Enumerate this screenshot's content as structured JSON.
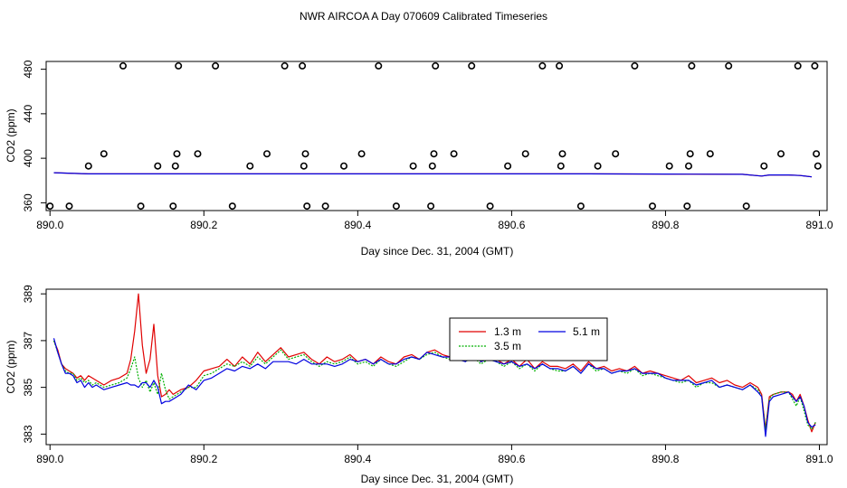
{
  "figure_title": "NWR AIRCOA A  Day 070609  Calibrated Timeseries",
  "colors": {
    "s13": "#e00000",
    "s35": "#00b000",
    "s51": "#0000e0",
    "axis": "#000000"
  },
  "chart_data": [
    {
      "type": "scatter",
      "title": "NWR AIRCOA A  Day 070609  Calibrated Timeseries",
      "xlabel": "Day since Dec. 31, 2004 (GMT)",
      "ylabel": "CO2 (ppm)",
      "xlim": [
        889.995,
        891.01
      ],
      "ylim": [
        353,
        487
      ],
      "x_ticks": [
        890.0,
        890.2,
        890.4,
        890.6,
        890.8,
        891.0
      ],
      "x_tick_labels": [
        "890.0",
        "890.2",
        "890.4",
        "890.6",
        "890.8",
        "891.0"
      ],
      "y_ticks": [
        360,
        400,
        440,
        480
      ],
      "y_tick_labels": [
        "360",
        "400",
        "440",
        "480"
      ],
      "calibration_points": {
        "x": [
          890.0,
          890.025,
          890.05,
          890.07,
          890.095,
          890.118,
          890.14,
          890.16,
          890.163,
          890.165,
          890.167,
          890.192,
          890.215,
          890.237,
          890.26,
          890.282,
          890.305,
          890.328,
          890.33,
          890.332,
          890.334,
          890.358,
          890.382,
          890.405,
          890.427,
          890.45,
          890.472,
          890.495,
          890.497,
          890.499,
          890.501,
          890.525,
          890.548,
          890.572,
          890.595,
          890.618,
          890.64,
          890.662,
          890.664,
          890.666,
          890.69,
          890.712,
          890.735,
          890.76,
          890.783,
          890.805,
          890.828,
          890.83,
          890.832,
          890.834,
          890.858,
          890.882,
          890.905,
          890.928,
          890.95,
          890.972,
          890.994,
          890.996,
          890.998
        ],
        "y": [
          357,
          357,
          393,
          404,
          483,
          357,
          393,
          357,
          393,
          404,
          483,
          404,
          483,
          357,
          393,
          404,
          483,
          483,
          393,
          404,
          357,
          357,
          393,
          404,
          483,
          357,
          393,
          357,
          393,
          404,
          483,
          404,
          483,
          357,
          393,
          404,
          483,
          483,
          393,
          404,
          357,
          393,
          404,
          483,
          357,
          393,
          357,
          393,
          404,
          483,
          404,
          483,
          357,
          393,
          404,
          483,
          483,
          404,
          393
        ]
      },
      "series": [
        {
          "name": "1.3 m",
          "x": [
            890.005,
            890.05,
            890.1,
            890.15,
            890.2,
            890.3,
            890.4,
            890.5,
            890.6,
            890.7,
            890.8,
            890.9,
            890.925,
            890.935,
            890.96,
            890.975,
            890.99
          ],
          "values": [
            387,
            386,
            386,
            386,
            386,
            386,
            386,
            386,
            386,
            386,
            385.8,
            385.6,
            384,
            385,
            385,
            384.5,
            383.3
          ]
        },
        {
          "name": "5.1 m",
          "x": [
            890.005,
            890.05,
            890.1,
            890.15,
            890.2,
            890.3,
            890.4,
            890.5,
            890.6,
            890.7,
            890.8,
            890.9,
            890.925,
            890.935,
            890.96,
            890.975,
            890.99
          ],
          "values": [
            387,
            386,
            386,
            386,
            386,
            386,
            386,
            386,
            386,
            386,
            385.8,
            385.6,
            384,
            385,
            385,
            384.5,
            383.3
          ]
        }
      ]
    },
    {
      "type": "line",
      "title": "",
      "xlabel": "Day since Dec. 31, 2004 (GMT)",
      "ylabel": "CO2 (ppm)",
      "xlim": [
        889.995,
        891.01
      ],
      "ylim": [
        382.55,
        389.2
      ],
      "x_ticks": [
        890.0,
        890.2,
        890.4,
        890.6,
        890.8,
        891.0
      ],
      "x_tick_labels": [
        "890.0",
        "890.2",
        "890.4",
        "890.6",
        "890.8",
        "891.0"
      ],
      "y_ticks": [
        383,
        385,
        387,
        389
      ],
      "y_tick_labels": [
        "383",
        "385",
        "387",
        "389"
      ],
      "legend": {
        "position": "top-center",
        "entries": [
          "1.3 m",
          "3.5 m",
          "5.1 m"
        ]
      },
      "series": [
        {
          "name": "1.3 m",
          "x": [
            890.005,
            890.01,
            890.015,
            890.02,
            890.025,
            890.03,
            890.035,
            890.04,
            890.045,
            890.05,
            890.055,
            890.06,
            890.07,
            890.08,
            890.09,
            890.1,
            890.105,
            890.11,
            890.115,
            890.12,
            890.125,
            890.13,
            890.135,
            890.14,
            890.145,
            890.15,
            890.155,
            890.16,
            890.17,
            890.18,
            890.19,
            890.2,
            890.21,
            890.22,
            890.23,
            890.24,
            890.25,
            890.26,
            890.27,
            890.28,
            890.29,
            890.3,
            890.31,
            890.32,
            890.33,
            890.34,
            890.35,
            890.36,
            890.37,
            890.38,
            890.39,
            890.4,
            890.41,
            890.42,
            890.43,
            890.44,
            890.45,
            890.46,
            890.47,
            890.48,
            890.49,
            890.5,
            890.51,
            890.52,
            890.53,
            890.54,
            890.55,
            890.56,
            890.57,
            890.58,
            890.59,
            890.6,
            890.61,
            890.62,
            890.63,
            890.64,
            890.65,
            890.66,
            890.67,
            890.68,
            890.69,
            890.7,
            890.71,
            890.72,
            890.73,
            890.74,
            890.75,
            890.76,
            890.77,
            890.78,
            890.79,
            890.8,
            890.81,
            890.82,
            890.83,
            890.84,
            890.85,
            890.86,
            890.87,
            890.88,
            890.89,
            890.9,
            890.91,
            890.92,
            890.925,
            890.93,
            890.935,
            890.94,
            890.95,
            890.96,
            890.965,
            890.97,
            890.975,
            890.98,
            890.985,
            890.99,
            890.995
          ],
          "values": [
            387.0,
            386.6,
            386.0,
            385.8,
            385.7,
            385.6,
            385.4,
            385.5,
            385.3,
            385.5,
            385.4,
            385.3,
            385.1,
            385.3,
            385.4,
            385.6,
            386.2,
            387.4,
            389.0,
            386.8,
            385.6,
            386.2,
            387.7,
            385.5,
            384.6,
            384.7,
            384.9,
            384.7,
            384.9,
            385.0,
            385.3,
            385.7,
            385.8,
            385.9,
            386.2,
            385.9,
            386.3,
            386.0,
            386.5,
            386.1,
            386.4,
            386.7,
            386.3,
            386.4,
            386.5,
            386.2,
            386.0,
            386.3,
            386.1,
            386.2,
            386.4,
            386.1,
            386.2,
            386.0,
            386.3,
            386.1,
            386.0,
            386.3,
            386.4,
            386.2,
            386.5,
            386.6,
            386.4,
            386.3,
            386.5,
            386.2,
            386.5,
            386.1,
            386.3,
            386.2,
            386.0,
            386.2,
            385.9,
            386.2,
            385.8,
            386.1,
            385.9,
            385.9,
            385.8,
            386.0,
            385.7,
            386.1,
            385.8,
            385.9,
            385.7,
            385.8,
            385.7,
            385.9,
            385.6,
            385.7,
            385.6,
            385.5,
            385.4,
            385.3,
            385.5,
            385.2,
            385.3,
            385.4,
            385.2,
            385.3,
            385.1,
            385.0,
            385.2,
            385.0,
            384.7,
            383.2,
            384.6,
            384.7,
            384.8,
            384.8,
            384.7,
            384.4,
            384.7,
            384.2,
            383.6,
            383.1,
            383.5
          ]
        },
        {
          "name": "3.5 m",
          "x": [
            890.005,
            890.01,
            890.015,
            890.02,
            890.025,
            890.03,
            890.035,
            890.04,
            890.045,
            890.05,
            890.055,
            890.06,
            890.07,
            890.08,
            890.09,
            890.1,
            890.105,
            890.11,
            890.115,
            890.12,
            890.125,
            890.13,
            890.135,
            890.14,
            890.145,
            890.15,
            890.155,
            890.16,
            890.17,
            890.18,
            890.19,
            890.2,
            890.21,
            890.22,
            890.23,
            890.24,
            890.25,
            890.26,
            890.27,
            890.28,
            890.29,
            890.3,
            890.31,
            890.32,
            890.33,
            890.34,
            890.35,
            890.36,
            890.37,
            890.38,
            890.39,
            890.4,
            890.41,
            890.42,
            890.43,
            890.44,
            890.45,
            890.46,
            890.47,
            890.48,
            890.49,
            890.5,
            890.51,
            890.52,
            890.53,
            890.54,
            890.55,
            890.56,
            890.57,
            890.58,
            890.59,
            890.6,
            890.61,
            890.62,
            890.63,
            890.64,
            890.65,
            890.66,
            890.67,
            890.68,
            890.69,
            890.7,
            890.71,
            890.72,
            890.73,
            890.74,
            890.75,
            890.76,
            890.77,
            890.78,
            890.79,
            890.8,
            890.81,
            890.82,
            890.83,
            890.84,
            890.85,
            890.86,
            890.87,
            890.88,
            890.89,
            890.9,
            890.91,
            890.92,
            890.925,
            890.93,
            890.935,
            890.94,
            890.95,
            890.96,
            890.965,
            890.97,
            890.975,
            890.98,
            890.985,
            890.99,
            890.995
          ],
          "values": [
            387.0,
            386.5,
            386.0,
            385.7,
            385.6,
            385.6,
            385.3,
            385.4,
            385.2,
            385.3,
            385.1,
            385.2,
            385.0,
            385.1,
            385.2,
            385.4,
            385.8,
            386.3,
            385.4,
            385.0,
            385.3,
            384.8,
            385.2,
            384.7,
            385.6,
            384.9,
            384.5,
            384.6,
            384.8,
            385.0,
            385.0,
            385.5,
            385.6,
            385.8,
            386.0,
            385.9,
            386.1,
            385.9,
            386.3,
            386.0,
            386.3,
            386.6,
            386.2,
            386.3,
            386.4,
            386.1,
            385.9,
            386.1,
            386.0,
            386.1,
            386.3,
            386.0,
            386.1,
            385.9,
            386.2,
            386.0,
            385.9,
            386.1,
            386.3,
            386.2,
            386.4,
            386.5,
            386.3,
            386.2,
            386.4,
            386.1,
            386.3,
            386.0,
            386.2,
            386.1,
            385.9,
            386.1,
            385.8,
            386.0,
            385.7,
            386.0,
            385.8,
            385.7,
            385.7,
            385.9,
            385.6,
            386.0,
            385.7,
            385.8,
            385.6,
            385.7,
            385.6,
            385.8,
            385.5,
            385.6,
            385.5,
            385.4,
            385.3,
            385.2,
            385.3,
            385.0,
            385.2,
            385.2,
            385.0,
            385.1,
            385.0,
            384.9,
            385.1,
            384.9,
            384.6,
            383.2,
            384.5,
            384.7,
            384.8,
            384.8,
            384.5,
            384.2,
            384.6,
            384.0,
            383.4,
            383.2,
            383.5
          ]
        },
        {
          "name": "5.1 m",
          "x": [
            890.005,
            890.01,
            890.015,
            890.02,
            890.025,
            890.03,
            890.035,
            890.04,
            890.045,
            890.05,
            890.055,
            890.06,
            890.07,
            890.08,
            890.09,
            890.1,
            890.105,
            890.11,
            890.115,
            890.12,
            890.125,
            890.13,
            890.135,
            890.14,
            890.145,
            890.15,
            890.155,
            890.16,
            890.17,
            890.18,
            890.19,
            890.2,
            890.21,
            890.22,
            890.23,
            890.24,
            890.25,
            890.26,
            890.27,
            890.28,
            890.29,
            890.3,
            890.31,
            890.32,
            890.33,
            890.34,
            890.35,
            890.36,
            890.37,
            890.38,
            890.39,
            890.4,
            890.41,
            890.42,
            890.43,
            890.44,
            890.45,
            890.46,
            890.47,
            890.48,
            890.49,
            890.5,
            890.51,
            890.52,
            890.53,
            890.54,
            890.55,
            890.56,
            890.57,
            890.58,
            890.59,
            890.6,
            890.61,
            890.62,
            890.63,
            890.64,
            890.65,
            890.66,
            890.67,
            890.68,
            890.69,
            890.7,
            890.71,
            890.72,
            890.73,
            890.74,
            890.75,
            890.76,
            890.77,
            890.78,
            890.79,
            890.8,
            890.81,
            890.82,
            890.83,
            890.84,
            890.85,
            890.86,
            890.87,
            890.88,
            890.89,
            890.9,
            890.91,
            890.92,
            890.925,
            890.93,
            890.935,
            890.94,
            890.95,
            890.96,
            890.965,
            890.97,
            890.975,
            890.98,
            890.985,
            890.99,
            890.995
          ],
          "values": [
            387.1,
            386.5,
            386.0,
            385.6,
            385.6,
            385.5,
            385.2,
            385.3,
            385.0,
            385.2,
            385.0,
            385.1,
            384.9,
            385.0,
            385.1,
            385.2,
            385.1,
            385.1,
            385.0,
            385.2,
            385.2,
            385.0,
            385.3,
            385.0,
            384.3,
            384.4,
            384.4,
            384.5,
            384.7,
            385.1,
            384.9,
            385.3,
            385.4,
            385.6,
            385.8,
            385.7,
            385.9,
            385.8,
            386.0,
            385.8,
            386.1,
            386.1,
            386.1,
            386.0,
            386.2,
            386.0,
            386.0,
            386.0,
            385.9,
            386.0,
            386.2,
            386.1,
            386.2,
            386.0,
            386.2,
            386.0,
            386.0,
            386.2,
            386.3,
            386.2,
            386.5,
            386.4,
            386.3,
            386.3,
            386.2,
            386.1,
            386.4,
            386.1,
            386.2,
            386.1,
            386.0,
            386.1,
            385.9,
            386.0,
            385.8,
            386.0,
            385.8,
            385.8,
            385.7,
            385.9,
            385.6,
            386.0,
            385.8,
            385.8,
            385.6,
            385.7,
            385.7,
            385.8,
            385.6,
            385.6,
            385.6,
            385.4,
            385.3,
            385.3,
            385.3,
            385.1,
            385.2,
            385.3,
            385.0,
            385.1,
            385.0,
            384.9,
            385.1,
            384.8,
            384.6,
            382.9,
            384.4,
            384.6,
            384.7,
            384.8,
            384.6,
            384.4,
            384.6,
            384.2,
            383.5,
            383.3,
            383.4
          ]
        }
      ]
    }
  ]
}
